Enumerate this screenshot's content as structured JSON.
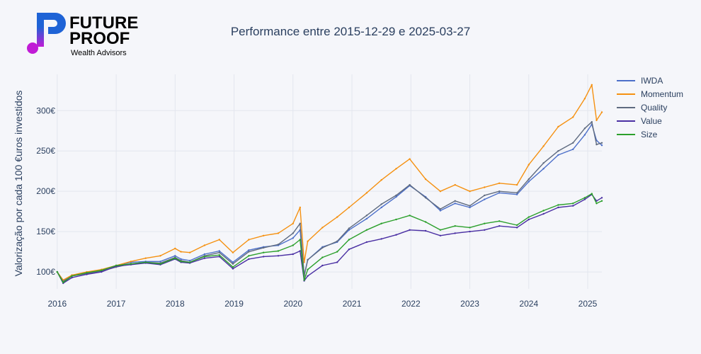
{
  "brand": {
    "line1": "FUTURE",
    "line2": "PROOF",
    "tagline": "Wealth Advisors",
    "colors": {
      "blue": "#1e63d6",
      "magenta": "#c11bd6"
    }
  },
  "chart_data": {
    "type": "line",
    "title": "Performance entre 2015-12-29 e 2025-03-27",
    "ylabel": "Valorização por cada 100 €uros investidos",
    "xlabel": "",
    "xlim": [
      2015.99,
      2025.24
    ],
    "ylim": [
      79,
      345
    ],
    "x_ticks": [
      {
        "value": 2016,
        "label": "2016"
      },
      {
        "value": 2017,
        "label": "2017"
      },
      {
        "value": 2018,
        "label": "2018"
      },
      {
        "value": 2019,
        "label": "2019"
      },
      {
        "value": 2020,
        "label": "2020"
      },
      {
        "value": 2021,
        "label": "2021"
      },
      {
        "value": 2022,
        "label": "2022"
      },
      {
        "value": 2023,
        "label": "2023"
      },
      {
        "value": 2024,
        "label": "2024"
      },
      {
        "value": 2025,
        "label": "2025"
      }
    ],
    "y_ticks": [
      {
        "value": 100,
        "label": "100€"
      },
      {
        "value": 150,
        "label": "150€"
      },
      {
        "value": 200,
        "label": "200€"
      },
      {
        "value": 250,
        "label": "250€"
      },
      {
        "value": 300,
        "label": "300€"
      }
    ],
    "grid": true,
    "legend_position": "top-right",
    "x": [
      2016.0,
      2016.1,
      2016.25,
      2016.5,
      2016.75,
      2017.0,
      2017.25,
      2017.5,
      2017.75,
      2018.0,
      2018.1,
      2018.25,
      2018.5,
      2018.75,
      2018.98,
      2019.25,
      2019.5,
      2019.75,
      2020.0,
      2020.12,
      2020.19,
      2020.25,
      2020.5,
      2020.75,
      2020.95,
      2021.25,
      2021.5,
      2021.75,
      2021.98,
      2022.25,
      2022.5,
      2022.75,
      2023.0,
      2023.25,
      2023.5,
      2023.8,
      2024.0,
      2024.25,
      2024.5,
      2024.75,
      2024.95,
      2025.07,
      2025.15,
      2025.24
    ],
    "series": [
      {
        "name": "IWDA",
        "color": "#4c6fc9",
        "values": [
          100,
          89,
          96,
          99,
          102,
          108,
          112,
          113,
          113,
          120,
          116,
          114,
          122,
          126,
          112,
          127,
          131,
          133,
          142,
          152,
          96,
          115,
          131,
          137,
          152,
          166,
          180,
          193,
          207,
          193,
          176,
          185,
          180,
          190,
          198,
          196,
          212,
          228,
          245,
          252,
          270,
          283,
          263,
          257
        ]
      },
      {
        "name": "Momentum",
        "color": "#f59111",
        "values": [
          100,
          90,
          96,
          100,
          103,
          108,
          113,
          117,
          120,
          129,
          125,
          124,
          133,
          140,
          124,
          140,
          145,
          148,
          160,
          180,
          112,
          138,
          155,
          168,
          180,
          198,
          214,
          228,
          240,
          215,
          200,
          208,
          200,
          205,
          210,
          208,
          233,
          256,
          280,
          292,
          315,
          332,
          288,
          298
        ]
      },
      {
        "name": "Quality",
        "color": "#5f6b80",
        "values": [
          100,
          88,
          95,
          98,
          101,
          106,
          110,
          112,
          111,
          118,
          114,
          112,
          120,
          124,
          110,
          125,
          130,
          134,
          148,
          160,
          95,
          115,
          130,
          138,
          154,
          170,
          184,
          195,
          208,
          192,
          178,
          188,
          182,
          195,
          200,
          198,
          215,
          235,
          250,
          260,
          278,
          286,
          258,
          260
        ]
      },
      {
        "name": "Value",
        "color": "#4a2fa3",
        "values": [
          100,
          86,
          93,
          97,
          100,
          107,
          109,
          111,
          109,
          116,
          112,
          111,
          117,
          119,
          104,
          116,
          119,
          120,
          122,
          126,
          89,
          95,
          108,
          112,
          128,
          137,
          141,
          146,
          152,
          151,
          145,
          148,
          150,
          152,
          157,
          155,
          165,
          172,
          180,
          182,
          190,
          196,
          188,
          192
        ]
      },
      {
        "name": "Size",
        "color": "#2ca02c",
        "values": [
          100,
          87,
          95,
          99,
          102,
          108,
          110,
          112,
          110,
          117,
          113,
          112,
          119,
          121,
          106,
          120,
          124,
          126,
          133,
          140,
          90,
          103,
          118,
          125,
          140,
          152,
          160,
          165,
          170,
          162,
          152,
          157,
          155,
          160,
          163,
          158,
          168,
          176,
          183,
          185,
          192,
          197,
          185,
          188
        ]
      }
    ]
  }
}
